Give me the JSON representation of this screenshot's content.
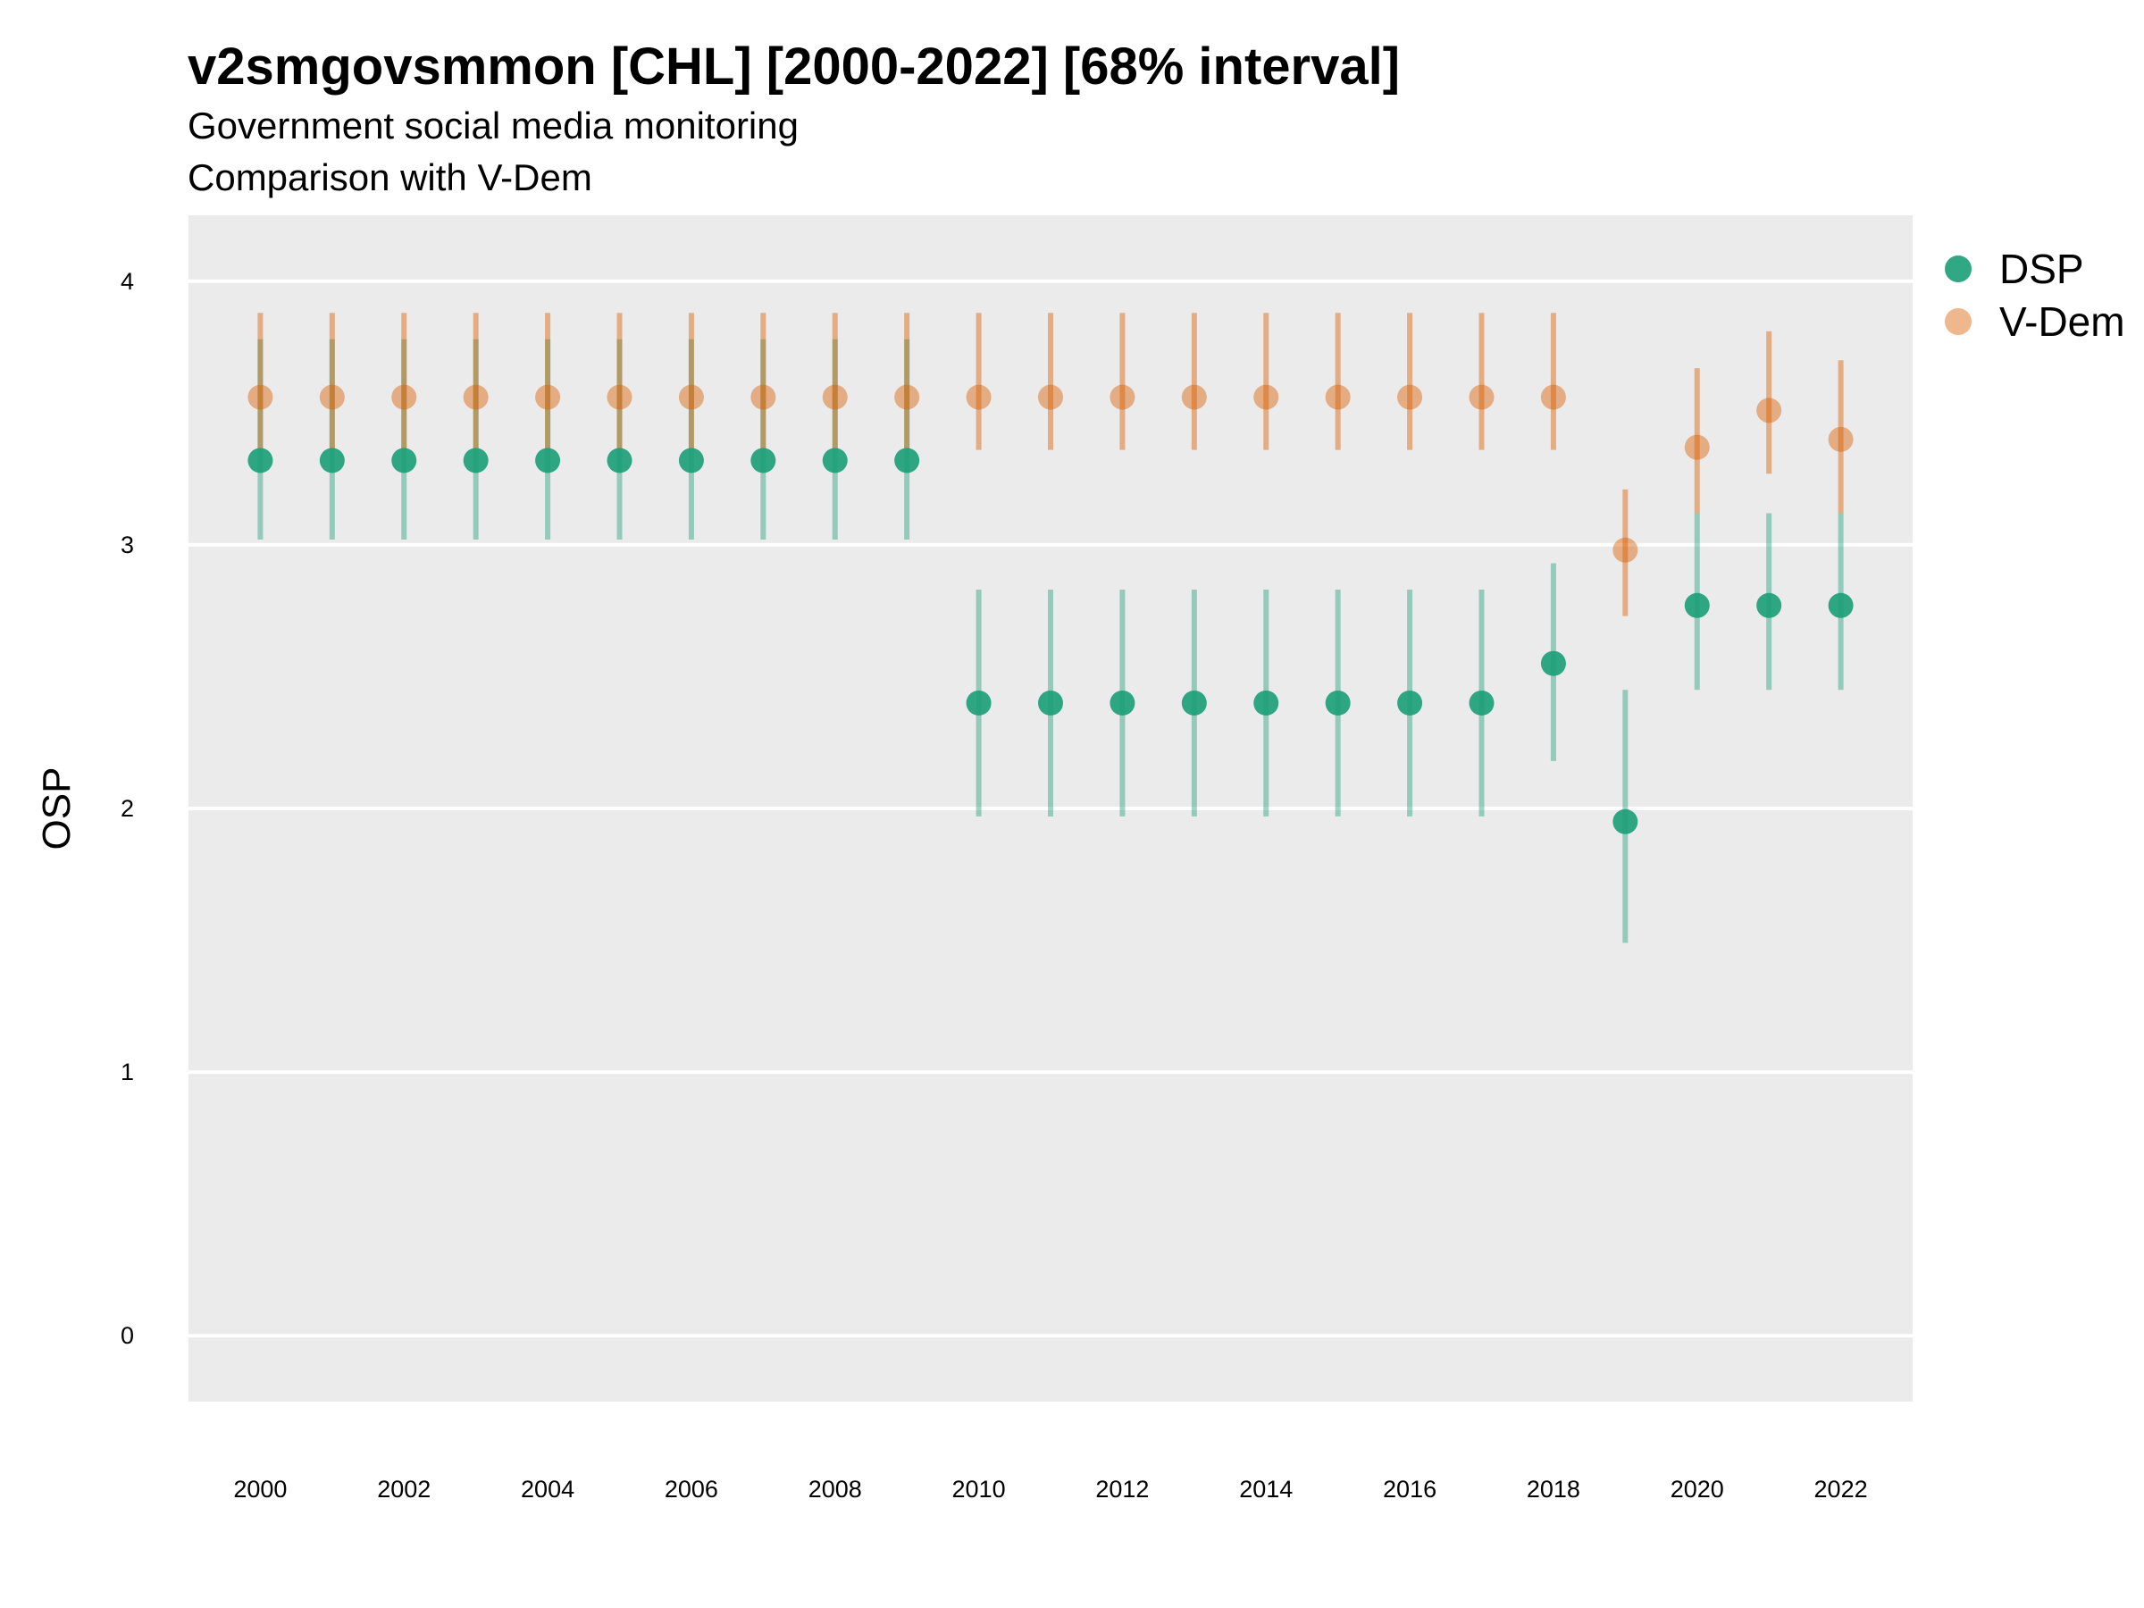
{
  "chart_data": {
    "type": "scatter",
    "title": "v2smgovsmmon [CHL] [2000-2022] [68% interval]",
    "subtitle": "Government social media monitoring",
    "subtitle2": "Comparison with V-Dem",
    "xlabel": "",
    "ylabel": "OSP",
    "xlim": [
      1999,
      2023
    ],
    "ylim": [
      -0.25,
      4.25
    ],
    "yticks": [
      0,
      1,
      2,
      3,
      4
    ],
    "xticks": [
      2000,
      2002,
      2004,
      2006,
      2008,
      2010,
      2012,
      2014,
      2016,
      2018,
      2020,
      2022
    ],
    "x": [
      2000,
      2001,
      2002,
      2003,
      2004,
      2005,
      2006,
      2007,
      2008,
      2009,
      2010,
      2011,
      2012,
      2013,
      2014,
      2015,
      2016,
      2017,
      2018,
      2019,
      2020,
      2021,
      2022
    ],
    "grid": true,
    "legend_position": "right",
    "series": [
      {
        "name": "DSP",
        "color": "#1b9e77",
        "values": [
          3.32,
          3.32,
          3.32,
          3.32,
          3.32,
          3.32,
          3.32,
          3.32,
          3.32,
          3.32,
          2.4,
          2.4,
          2.4,
          2.4,
          2.4,
          2.4,
          2.4,
          2.4,
          2.55,
          1.95,
          2.77,
          2.77,
          2.77
        ],
        "lower": [
          3.02,
          3.02,
          3.02,
          3.02,
          3.02,
          3.02,
          3.02,
          3.02,
          3.02,
          3.02,
          1.97,
          1.97,
          1.97,
          1.97,
          1.97,
          1.97,
          1.97,
          1.97,
          2.18,
          1.49,
          2.45,
          2.45,
          2.45
        ],
        "upper": [
          3.78,
          3.78,
          3.78,
          3.78,
          3.78,
          3.78,
          3.78,
          3.78,
          3.78,
          3.78,
          2.83,
          2.83,
          2.83,
          2.83,
          2.83,
          2.83,
          2.83,
          2.83,
          2.93,
          2.45,
          3.12,
          3.12,
          3.12
        ]
      },
      {
        "name": "V-Dem",
        "color": "#d95f02",
        "values": [
          3.56,
          3.56,
          3.56,
          3.56,
          3.56,
          3.56,
          3.56,
          3.56,
          3.56,
          3.56,
          3.56,
          3.56,
          3.56,
          3.56,
          3.56,
          3.56,
          3.56,
          3.56,
          3.56,
          2.98,
          3.37,
          3.51,
          3.4
        ],
        "lower": [
          3.36,
          3.36,
          3.36,
          3.36,
          3.36,
          3.36,
          3.36,
          3.36,
          3.36,
          3.36,
          3.36,
          3.36,
          3.36,
          3.36,
          3.36,
          3.36,
          3.36,
          3.36,
          3.36,
          2.73,
          3.12,
          3.27,
          3.12
        ],
        "upper": [
          3.88,
          3.88,
          3.88,
          3.88,
          3.88,
          3.88,
          3.88,
          3.88,
          3.88,
          3.88,
          3.88,
          3.88,
          3.88,
          3.88,
          3.88,
          3.88,
          3.88,
          3.88,
          3.88,
          3.21,
          3.67,
          3.81,
          3.7
        ]
      }
    ]
  }
}
